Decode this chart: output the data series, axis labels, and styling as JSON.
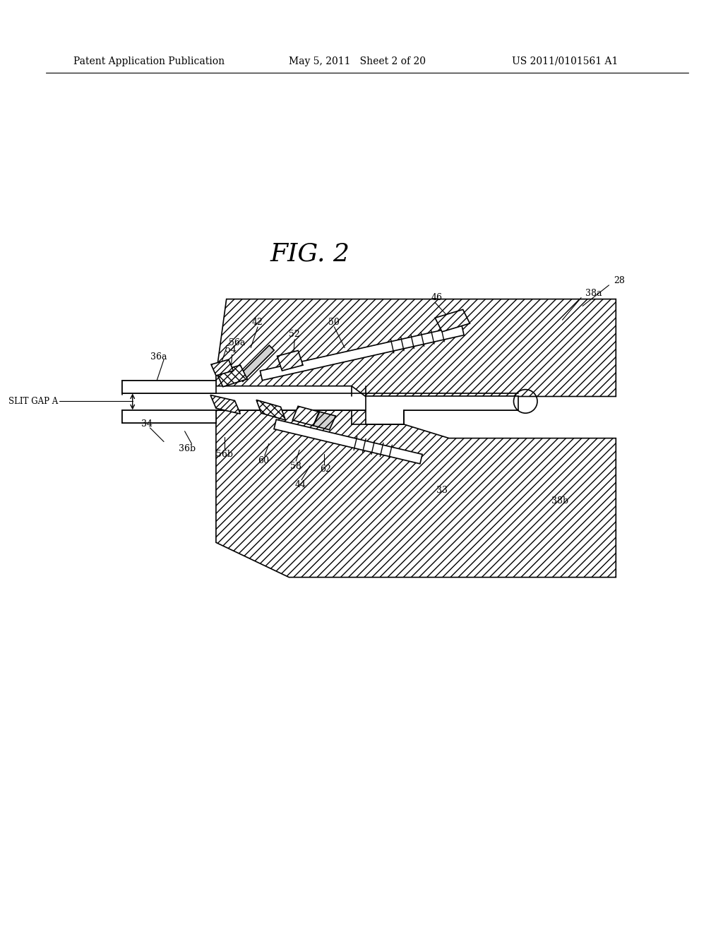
{
  "bg_color": "#ffffff",
  "header_left": "Patent Application Publication",
  "header_mid": "May 5, 2011   Sheet 2 of 20",
  "header_right": "US 2011/0101561 A1",
  "fig_label": "FIG. 2",
  "line_color": "#000000",
  "hatch_pattern": "///",
  "lw": 1.2
}
